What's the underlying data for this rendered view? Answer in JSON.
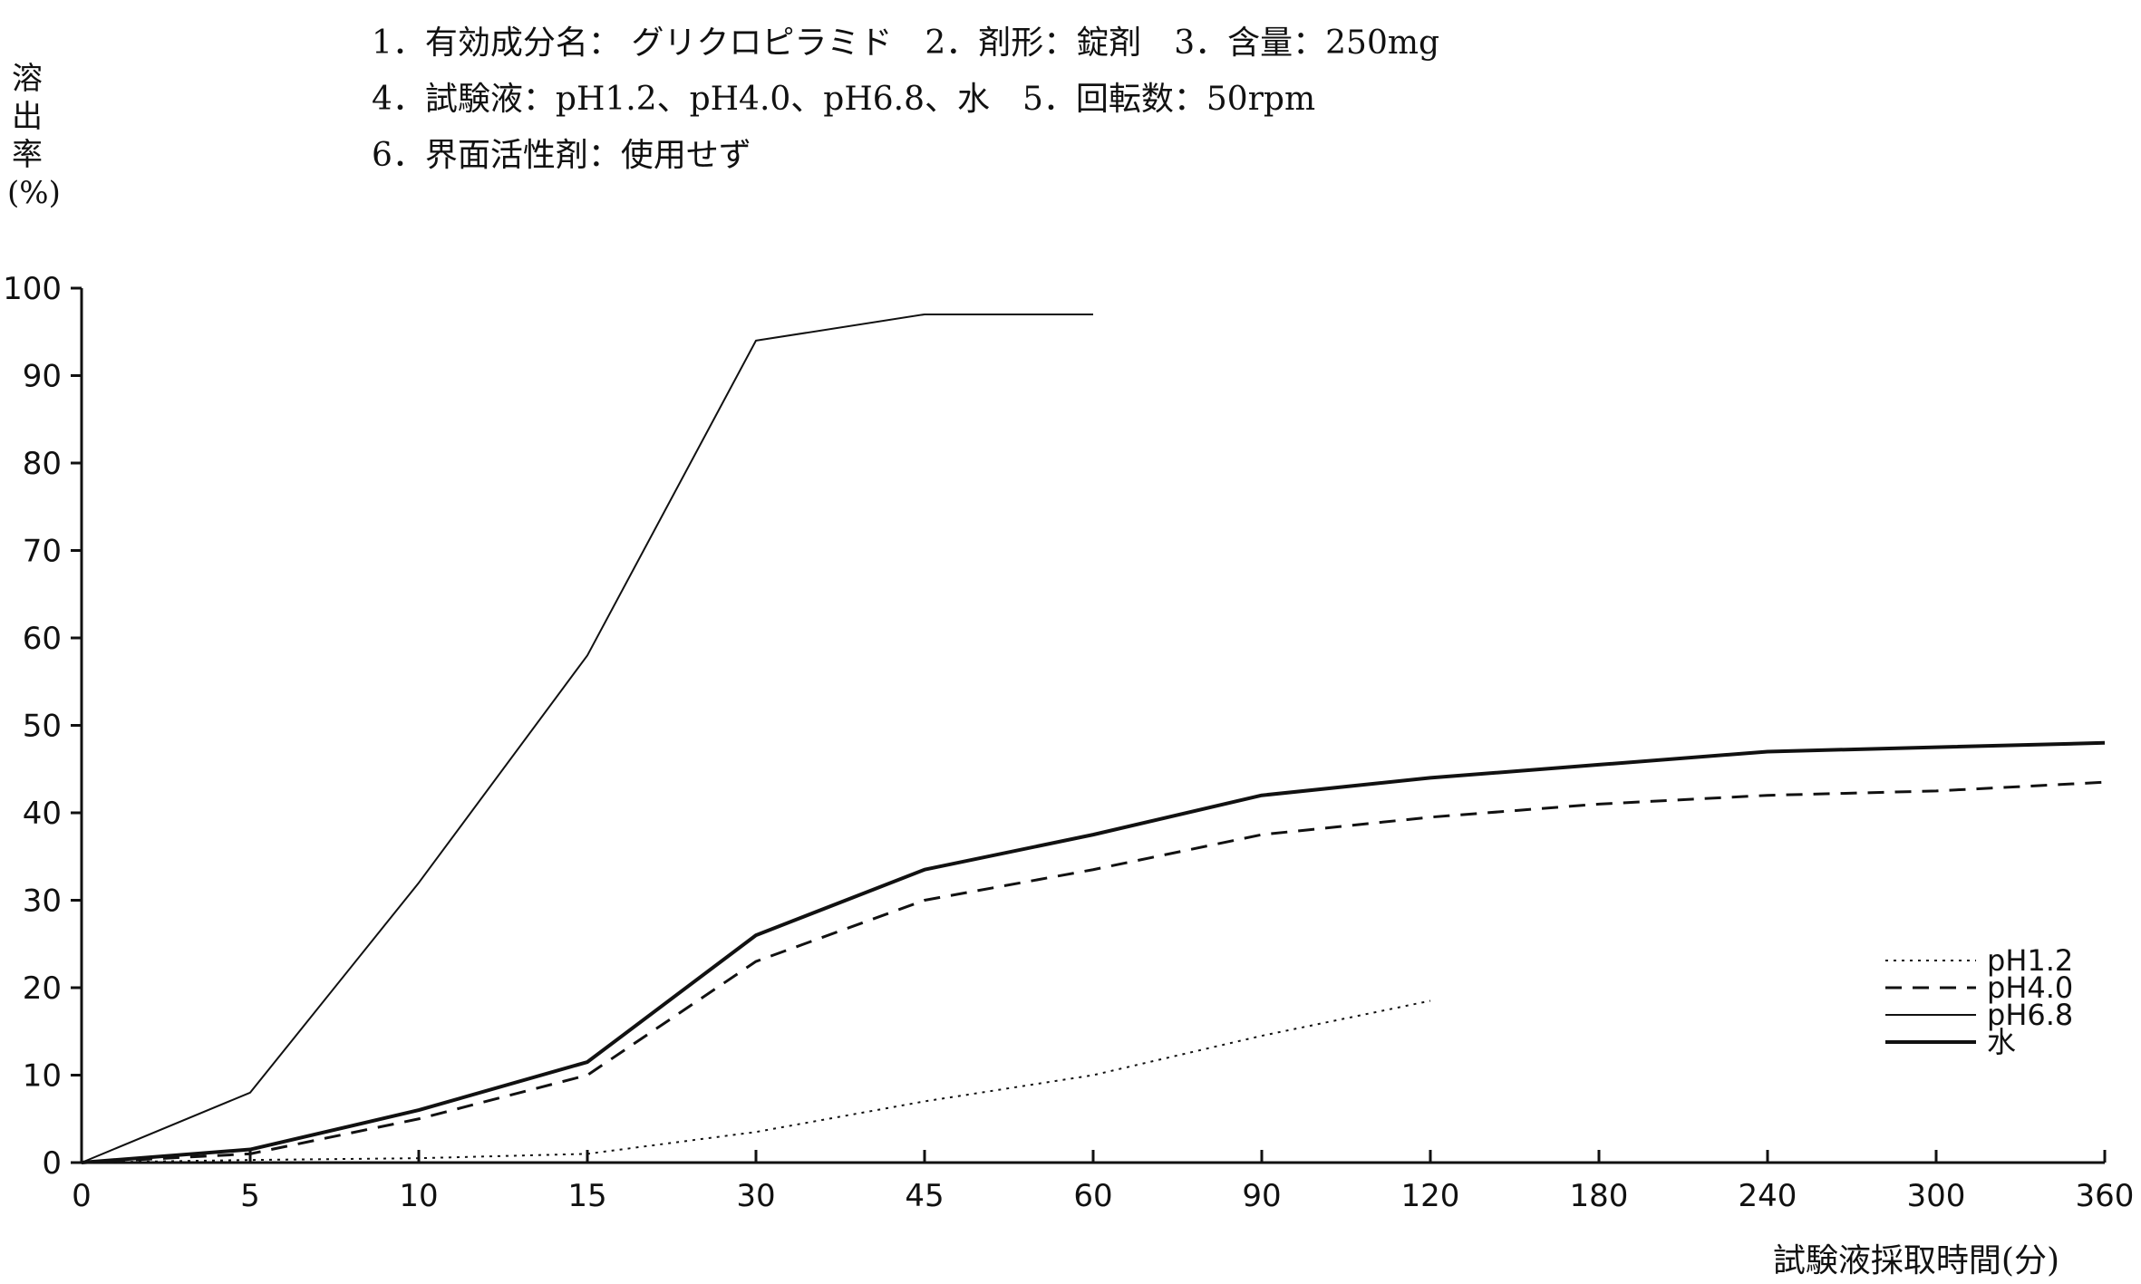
{
  "header": {
    "line1": "1．有効成分名： グリクロピラミド　2．剤形：錠剤　3．含量：250mg",
    "line2": "4．試験液：pH1.2、pH4.0、pH6.8、水　5．回転数：50rpm",
    "line3": "6．界面活性剤：使用せず"
  },
  "chart_data": {
    "type": "line",
    "title": "",
    "ylabel": "溶出率(%)",
    "ylabel_chars": [
      "溶",
      "出",
      "率",
      "(%)"
    ],
    "xlabel": "試験液採取時間(分)",
    "categories": [
      "0",
      "5",
      "10",
      "15",
      "30",
      "45",
      "60",
      "90",
      "120",
      "180",
      "240",
      "300",
      "360"
    ],
    "ylim": [
      0,
      100
    ],
    "yticks": [
      "0",
      "10",
      "20",
      "30",
      "40",
      "50",
      "60",
      "70",
      "80",
      "90",
      "100"
    ],
    "grid": false,
    "legend_position": "right",
    "series": [
      {
        "name": "pH1.2",
        "style": "dotted",
        "stroke_width": 2,
        "values": [
          0,
          0.3,
          0.5,
          1,
          3.5,
          7,
          10,
          14.5,
          18.5,
          null,
          null,
          null,
          null
        ]
      },
      {
        "name": "pH4.0",
        "style": "dashed",
        "stroke_width": 3,
        "values": [
          0,
          1,
          5,
          10,
          23,
          30,
          33.5,
          37.5,
          39.5,
          41,
          42,
          42.5,
          43.5
        ]
      },
      {
        "name": "pH6.8",
        "style": "solid-thin",
        "stroke_width": 2,
        "values": [
          0,
          8,
          32,
          58,
          94,
          97,
          97,
          null,
          null,
          null,
          null,
          null,
          null
        ]
      },
      {
        "name": "水",
        "style": "solid-thick",
        "stroke_width": 4,
        "values": [
          0,
          1.5,
          6,
          11.5,
          26,
          33.5,
          37.5,
          42,
          44,
          45.5,
          47,
          47.5,
          48
        ]
      }
    ]
  }
}
